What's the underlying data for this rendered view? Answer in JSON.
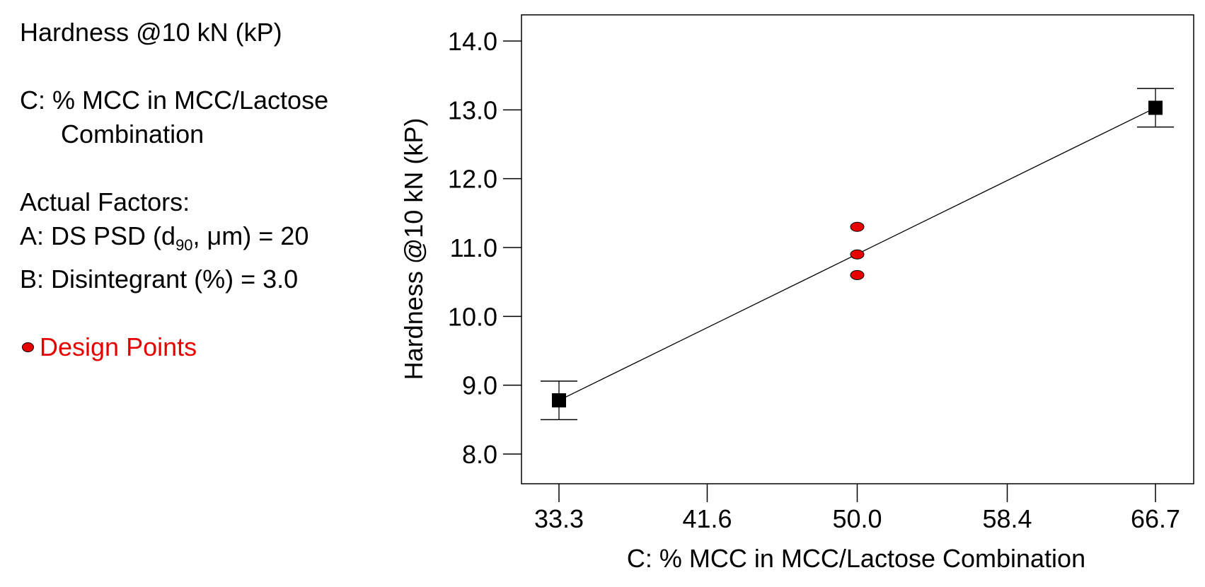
{
  "side_panel": {
    "response": "Hardness @10 kN (kP)",
    "factor_line1": "C: % MCC in MCC/Lactose",
    "factor_line2": "Combination",
    "actual_factors_label": "Actual Factors:",
    "factor_a_prefix": "A: DS PSD (d",
    "factor_a_sub": "90",
    "factor_a_suffix": ", μm) = 20",
    "factor_b": "B: Disintegrant (%) = 3.0",
    "legend_label": "Design Points",
    "legend_color": "#e60000"
  },
  "chart_data": {
    "type": "line",
    "title": "",
    "xlabel": "C: % MCC in MCC/Lactose Combination",
    "ylabel": "Hardness @10 kN (kP)",
    "xlim": [
      33.3,
      66.7
    ],
    "ylim": [
      7.6,
      14.4
    ],
    "x_ticks": [
      "33.3",
      "41.6",
      "50.0",
      "58.4",
      "66.7"
    ],
    "y_ticks": [
      "8.0",
      "9.0",
      "10.0",
      "11.0",
      "12.0",
      "13.0",
      "14.0"
    ],
    "fit_line": {
      "x": [
        33.3,
        66.7
      ],
      "y": [
        8.78,
        13.03
      ]
    },
    "interval_points": [
      {
        "x": 33.3,
        "y": 8.78,
        "low": 8.5,
        "high": 9.06
      },
      {
        "x": 66.7,
        "y": 13.03,
        "low": 12.75,
        "high": 13.31
      }
    ],
    "design_points": [
      {
        "x": 50.0,
        "y": 11.3
      },
      {
        "x": 50.0,
        "y": 10.9
      },
      {
        "x": 50.0,
        "y": 10.6
      }
    ],
    "design_point_color": "#e60000",
    "grid": false
  }
}
